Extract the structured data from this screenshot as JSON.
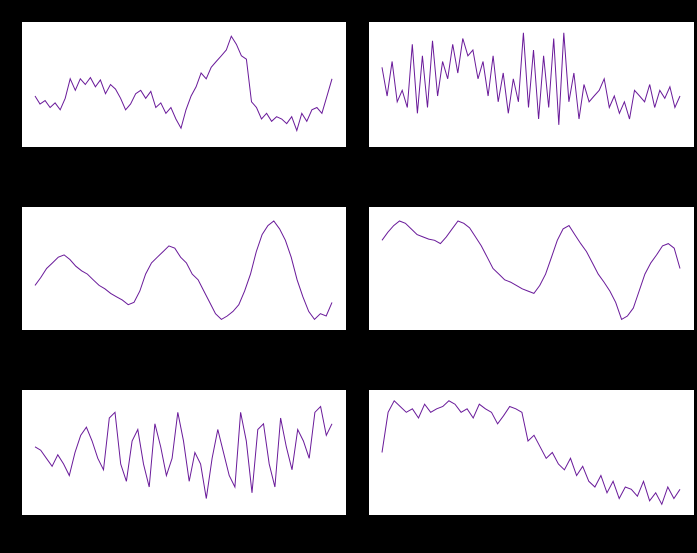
{
  "chart_data": [
    {
      "type": "line",
      "color": "#6a1b9a",
      "ylim": [
        0,
        100
      ],
      "series": [
        {
          "color": "#6a1b9a",
          "values": [
            40,
            33,
            36,
            30,
            34,
            28,
            38,
            55,
            45,
            55,
            50,
            56,
            48,
            54,
            42,
            50,
            46,
            38,
            28,
            33,
            42,
            45,
            38,
            44,
            30,
            34,
            25,
            30,
            20,
            12,
            28,
            40,
            48,
            60,
            55,
            65,
            70,
            75,
            80,
            92,
            85,
            75,
            72,
            35,
            30,
            20,
            25,
            18,
            22,
            20,
            16,
            22,
            10,
            25,
            18,
            28,
            30,
            25,
            40,
            55
          ]
        }
      ]
    },
    {
      "type": "line",
      "color": "#6a1b9a",
      "ylim": [
        0,
        100
      ],
      "series": [
        {
          "color": "#6a1b9a",
          "values": [
            65,
            40,
            70,
            35,
            45,
            30,
            85,
            25,
            75,
            30,
            88,
            40,
            70,
            55,
            85,
            60,
            90,
            75,
            80,
            55,
            70,
            40,
            75,
            35,
            60,
            25,
            55,
            35,
            95,
            30,
            80,
            20,
            75,
            30,
            90,
            15,
            95,
            35,
            60,
            20,
            50,
            35,
            40,
            45,
            55,
            30,
            40,
            25,
            35,
            20,
            45,
            40,
            35,
            50,
            30,
            45,
            38,
            48,
            30,
            40
          ]
        }
      ]
    },
    {
      "type": "line",
      "color": "#6a1b9a",
      "ylim": [
        0,
        100
      ],
      "series": [
        {
          "color": "#6a1b9a",
          "values": [
            35,
            42,
            50,
            55,
            60,
            62,
            58,
            52,
            48,
            45,
            40,
            35,
            32,
            28,
            25,
            22,
            18,
            20,
            30,
            45,
            55,
            60,
            65,
            70,
            68,
            60,
            55,
            45,
            40,
            30,
            20,
            10,
            5,
            8,
            12,
            18,
            30,
            45,
            65,
            80,
            88,
            92,
            85,
            75,
            60,
            40,
            25,
            12,
            5,
            10,
            8,
            20
          ]
        }
      ]
    },
    {
      "type": "line",
      "color": "#6a1b9a",
      "ylim": [
        0,
        100
      ],
      "series": [
        {
          "color": "#6a1b9a",
          "values": [
            75,
            82,
            88,
            92,
            90,
            85,
            80,
            78,
            76,
            75,
            72,
            78,
            85,
            92,
            90,
            86,
            78,
            70,
            60,
            50,
            45,
            40,
            38,
            35,
            32,
            30,
            28,
            35,
            45,
            60,
            75,
            85,
            88,
            80,
            72,
            65,
            55,
            45,
            38,
            30,
            20,
            5,
            8,
            15,
            30,
            45,
            55,
            62,
            70,
            72,
            68,
            50
          ]
        }
      ]
    },
    {
      "type": "line",
      "color": "#6a1b9a",
      "ylim": [
        0,
        100
      ],
      "series": [
        {
          "color": "#6a1b9a",
          "values": [
            55,
            52,
            45,
            38,
            48,
            40,
            30,
            50,
            65,
            72,
            60,
            45,
            35,
            80,
            85,
            40,
            25,
            60,
            70,
            40,
            20,
            75,
            55,
            30,
            45,
            85,
            60,
            25,
            50,
            40,
            10,
            45,
            70,
            50,
            30,
            20,
            85,
            60,
            15,
            70,
            75,
            40,
            20,
            80,
            55,
            35,
            70,
            60,
            45,
            85,
            90,
            65,
            75
          ]
        }
      ]
    },
    {
      "type": "line",
      "color": "#6a1b9a",
      "ylim": [
        0,
        100
      ],
      "series": [
        {
          "color": "#6a1b9a",
          "values": [
            50,
            85,
            95,
            90,
            85,
            88,
            80,
            92,
            85,
            88,
            90,
            95,
            92,
            85,
            88,
            80,
            92,
            88,
            85,
            75,
            82,
            90,
            88,
            85,
            60,
            65,
            55,
            45,
            50,
            40,
            35,
            45,
            30,
            38,
            25,
            20,
            30,
            15,
            25,
            10,
            20,
            18,
            12,
            25,
            8,
            15,
            5,
            20,
            10,
            18
          ]
        }
      ]
    }
  ]
}
